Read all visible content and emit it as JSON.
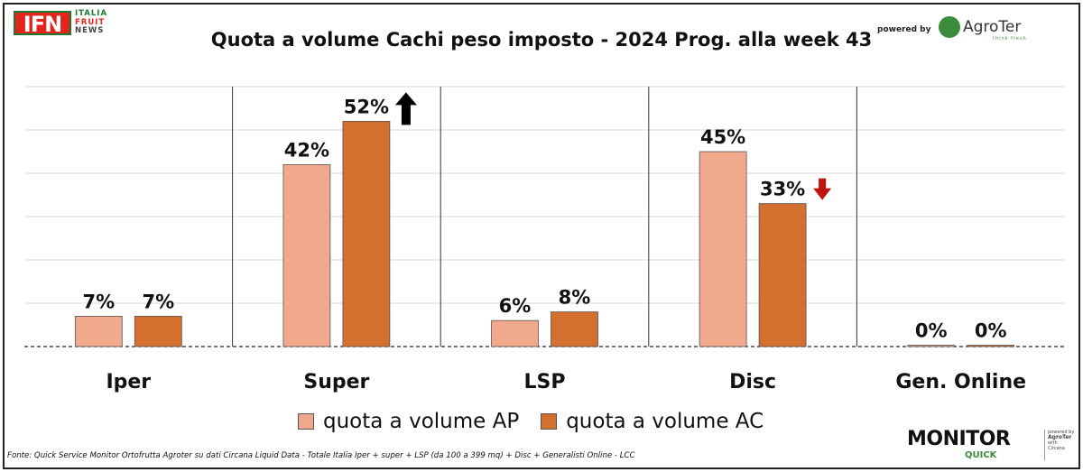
{
  "header": {
    "logo_main": "IFN",
    "logo_words": [
      "ITALIA",
      "FRUIT",
      "NEWS"
    ],
    "powered_by": "powered by",
    "agroter_name": "AgroTer",
    "agroter_tagline": "think fresh"
  },
  "chart_data": {
    "type": "bar",
    "title": "Quota a volume Cachi peso imposto - 2024 Prog. alla week 43",
    "categories": [
      "Iper",
      "Super",
      "LSP",
      "Disc",
      "Gen. Online"
    ],
    "series": [
      {
        "name": "quota a volume AP",
        "values": [
          7,
          42,
          6,
          45,
          0
        ],
        "labels": [
          "7%",
          "42%",
          "6%",
          "45%",
          "0%"
        ],
        "color": "#f0a98c"
      },
      {
        "name": "quota a volume AC",
        "values": [
          7,
          52,
          8,
          33,
          0
        ],
        "labels": [
          "7%",
          "52%",
          "8%",
          "33%",
          "0%"
        ],
        "color": "#d3702f"
      }
    ],
    "ylim": [
      0,
      60
    ],
    "grid": true,
    "legend": "bottom",
    "trend_arrows": [
      {
        "category": "Super",
        "direction": "up",
        "color": "#000000"
      },
      {
        "category": "Disc",
        "direction": "down",
        "color": "#c0120f"
      }
    ]
  },
  "footnote": "Fonte: Quick Service Monitor Ortofrutta Agroter su dati Circana Liquid Data - Totale Italia Iper + super + LSP (da 100 a 399 mq) + Disc + Generalisti Online - LCC",
  "footer_logo": {
    "word": "MONITOR",
    "sub": "QUICK",
    "mini": [
      "powered by",
      "AgroTer",
      "with",
      "Circana"
    ]
  }
}
